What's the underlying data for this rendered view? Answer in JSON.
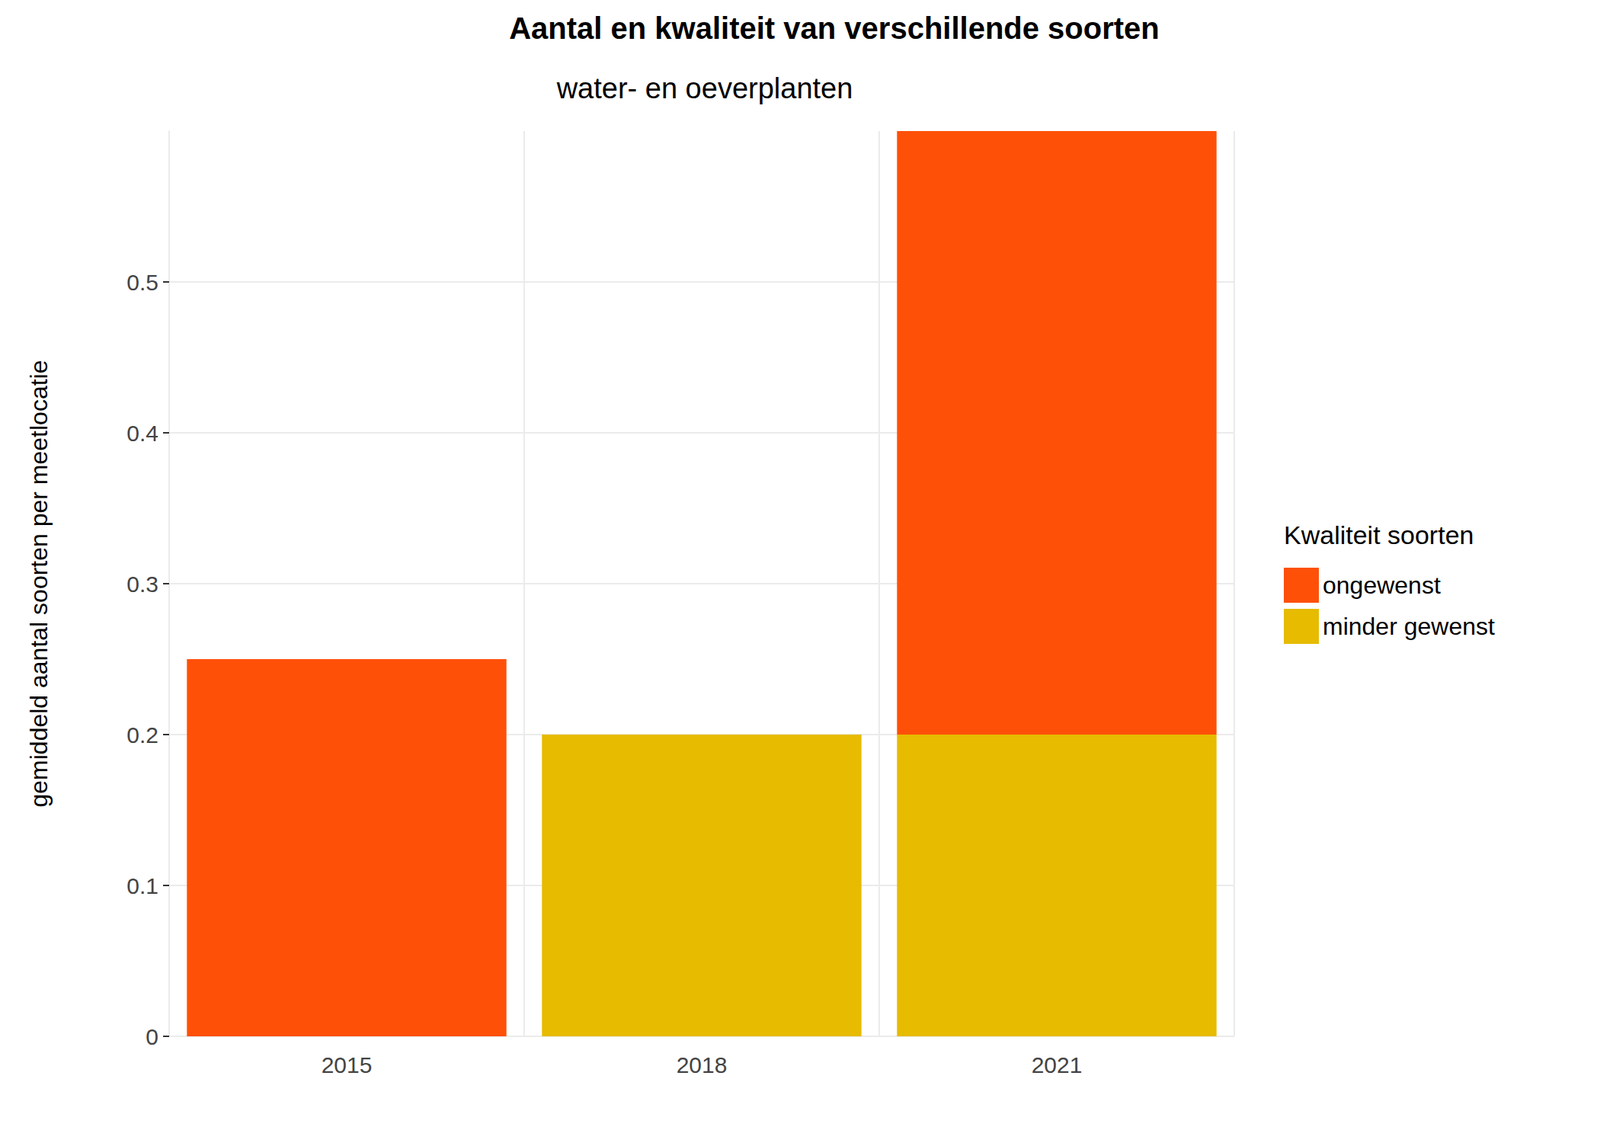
{
  "chart_data": {
    "type": "bar",
    "title": "Aantal en kwaliteit van verschillende soorten",
    "subtitle": "water- en oeverplanten",
    "y_label": "gemiddeld aantal soorten per meetlocatie",
    "legend_title": "Kwaliteit soorten",
    "categories": [
      "2015",
      "2018",
      "2021"
    ],
    "series": [
      {
        "name": "ongewenst",
        "color": "#ff5008",
        "values": [
          0.25,
          0,
          0.4
        ]
      },
      {
        "name": "minder gewenst",
        "color": "#e6bb00",
        "values": [
          0,
          0.2,
          0.2
        ]
      }
    ],
    "stacked": true,
    "ylim": [
      0,
      0.6
    ],
    "yticks": [
      0,
      0.1,
      0.2,
      0.3,
      0.4,
      0.5
    ],
    "grid": true,
    "legend": "right"
  }
}
